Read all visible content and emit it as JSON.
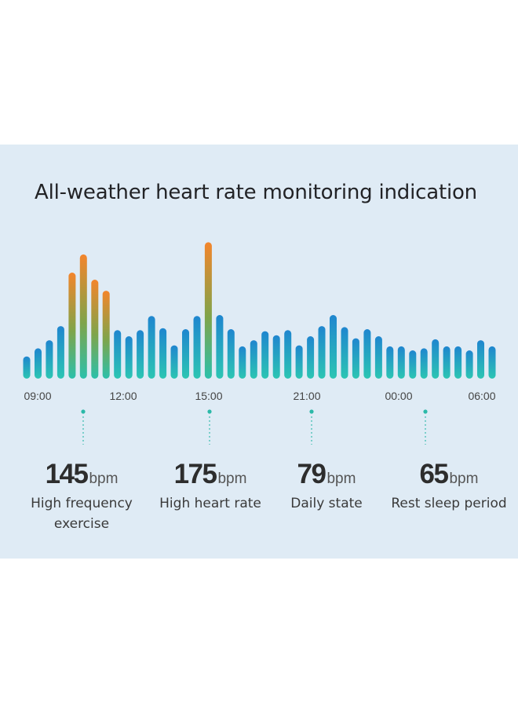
{
  "colors": {
    "panel_bg": "#dfebf5",
    "bar_blue": "#1f8ed0",
    "bar_teal": "#2bc4b4",
    "bar_orange": "#f2862d",
    "bar_green": "#3db27e",
    "marker": "#2bb9a8"
  },
  "chart_data": {
    "type": "bar",
    "title": "All-weather heart rate monitoring indication",
    "x_tick_labels": [
      "09:00",
      "12:00",
      "15:00",
      "21:00",
      "00:00",
      "06:00"
    ],
    "y_unit": "bpm",
    "ylim": [
      40,
      180
    ],
    "values": [
      62,
      70,
      78,
      92,
      145,
      163,
      138,
      127,
      88,
      82,
      88,
      102,
      90,
      73,
      89,
      102,
      175,
      103,
      89,
      72,
      78,
      87,
      83,
      88,
      73,
      82,
      92,
      103,
      91,
      80,
      89,
      82,
      72,
      72,
      68,
      70,
      79,
      72,
      72,
      68,
      78,
      72
    ],
    "highlights": [
      {
        "value": 145,
        "unit": "bpm",
        "label": "High frequency exercise"
      },
      {
        "value": 175,
        "unit": "bpm",
        "label": "High heart rate"
      },
      {
        "value": 79,
        "unit": "bpm",
        "label": "Daily state"
      },
      {
        "value": 65,
        "unit": "bpm",
        "label": "Rest sleep period"
      }
    ]
  }
}
